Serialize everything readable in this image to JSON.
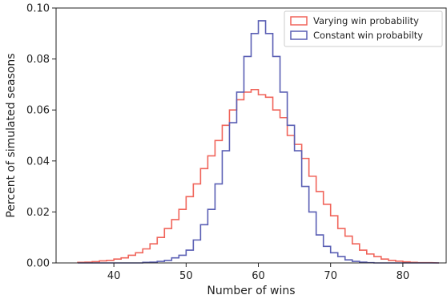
{
  "chart_data": {
    "type": "histogram",
    "xlabel": "Number of wins",
    "ylabel": "Percent of simulated seasons",
    "xlim": [
      32,
      86
    ],
    "ylim": [
      0,
      0.1
    ],
    "xticks": [
      40,
      50,
      60,
      70,
      80
    ],
    "xtick_labels": [
      "40",
      "50",
      "60",
      "70",
      "80"
    ],
    "yticks": [
      0,
      0.02,
      0.04,
      0.06,
      0.08,
      0.1
    ],
    "ytick_labels": [
      "0.00",
      "0.02",
      "0.04",
      "0.06",
      "0.08",
      "0.10"
    ],
    "grid": false,
    "legend_position": "top-right",
    "bin_edges": [
      35,
      36,
      37,
      38,
      39,
      40,
      41,
      42,
      43,
      44,
      45,
      46,
      47,
      48,
      49,
      50,
      51,
      52,
      53,
      54,
      55,
      56,
      57,
      58,
      59,
      60,
      61,
      62,
      63,
      64,
      65,
      66,
      67,
      68,
      69,
      70,
      71,
      72,
      73,
      74,
      75,
      76,
      77,
      78,
      79,
      80,
      81,
      82,
      83,
      84
    ],
    "series": [
      {
        "name": "Varying win probability",
        "color": "#f0645a",
        "values": [
          0.0002,
          0.0003,
          0.0005,
          0.0008,
          0.001,
          0.0015,
          0.002,
          0.003,
          0.004,
          0.0055,
          0.0075,
          0.01,
          0.0135,
          0.017,
          0.021,
          0.026,
          0.031,
          0.037,
          0.042,
          0.048,
          0.054,
          0.06,
          0.064,
          0.067,
          0.068,
          0.066,
          0.065,
          0.06,
          0.057,
          0.05,
          0.0465,
          0.041,
          0.034,
          0.028,
          0.023,
          0.0185,
          0.0135,
          0.0105,
          0.0075,
          0.005,
          0.0035,
          0.0025,
          0.0015,
          0.001,
          0.0007,
          0.0004,
          0.0002,
          0.0001,
          0.0001
        ]
      },
      {
        "name": "Constant win probabilty",
        "color": "#5a5fb4",
        "values": [
          0,
          0,
          0,
          0,
          0,
          0,
          0,
          0,
          0,
          0.0002,
          0.0003,
          0.0006,
          0.001,
          0.002,
          0.003,
          0.005,
          0.009,
          0.015,
          0.021,
          0.031,
          0.044,
          0.055,
          0.067,
          0.081,
          0.09,
          0.095,
          0.09,
          0.081,
          0.067,
          0.054,
          0.044,
          0.03,
          0.02,
          0.011,
          0.0065,
          0.004,
          0.0025,
          0.0012,
          0.0006,
          0.0003,
          0.0001,
          0,
          0,
          0,
          0,
          0,
          0,
          0,
          0
        ]
      }
    ]
  }
}
